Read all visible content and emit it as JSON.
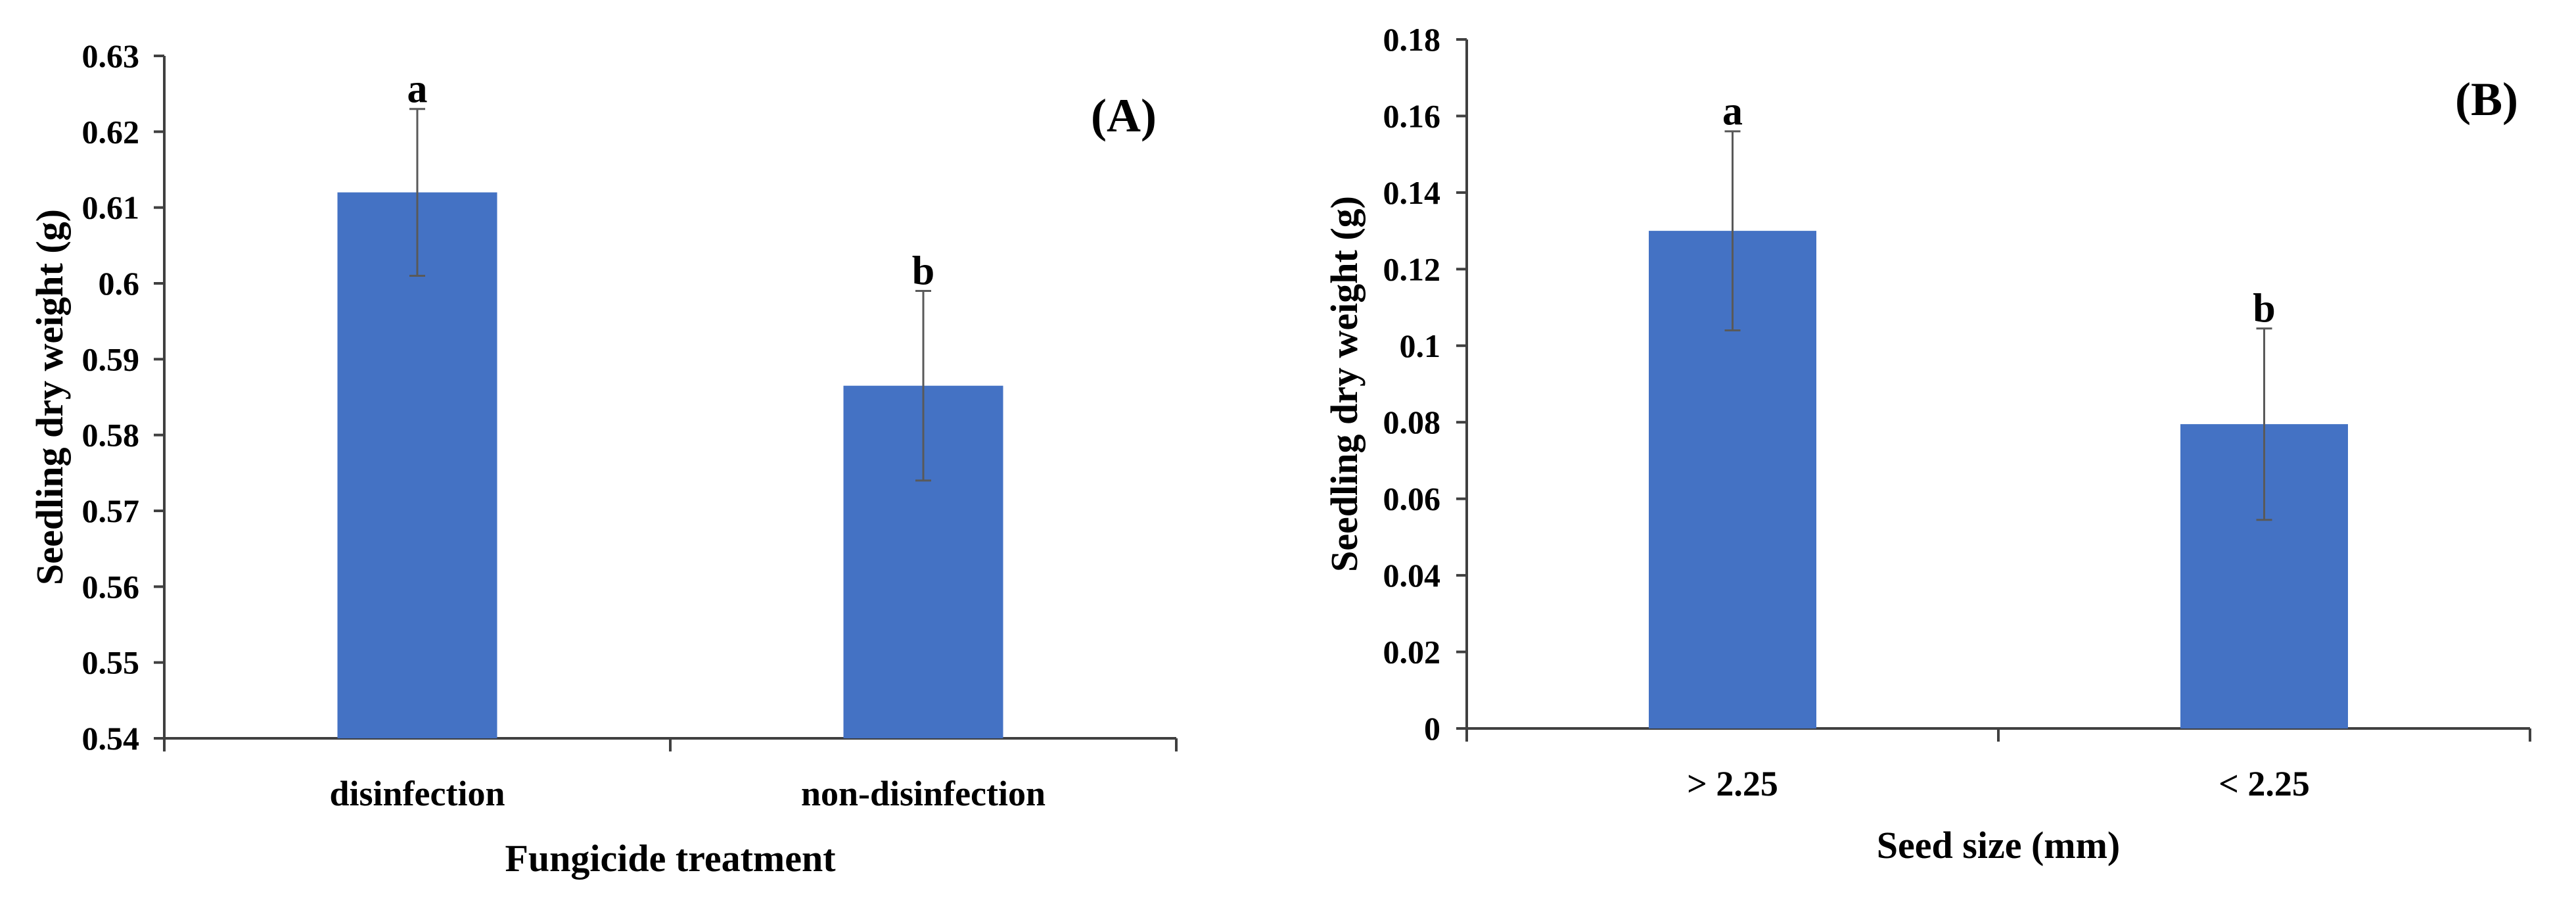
{
  "chart_data": [
    {
      "type": "bar",
      "panel_tag": "(A)",
      "categories": [
        "disinfection",
        "non-disinfection"
      ],
      "values": [
        0.612,
        0.5865
      ],
      "error": [
        0.011,
        0.0125
      ],
      "significance": [
        "a",
        "b"
      ],
      "xlabel": "Fungicide treatment",
      "ylabel": "Seedling dry weight (g)",
      "ylim": [
        0.54,
        0.63
      ],
      "yticks": [
        "0.54",
        "0.55",
        "0.56",
        "0.57",
        "0.58",
        "0.59",
        "0.6",
        "0.61",
        "0.62",
        "0.63"
      ],
      "grid": false,
      "bar_color": "#4472c4",
      "error_color": "#595959"
    },
    {
      "type": "bar",
      "panel_tag": "(B)",
      "categories": [
        "> 2.25",
        "< 2.25"
      ],
      "values": [
        0.13,
        0.0795
      ],
      "error": [
        0.026,
        0.025
      ],
      "significance": [
        "a",
        "b"
      ],
      "xlabel": "Seed size (mm)",
      "ylabel": "Seedling dry weight (g)",
      "ylim": [
        0,
        0.18
      ],
      "yticks": [
        "0",
        "0.02",
        "0.04",
        "0.06",
        "0.08",
        "0.1",
        "0.12",
        "0.14",
        "0.16",
        "0.18"
      ],
      "grid": false,
      "bar_color": "#4472c4",
      "error_color": "#595959"
    }
  ]
}
